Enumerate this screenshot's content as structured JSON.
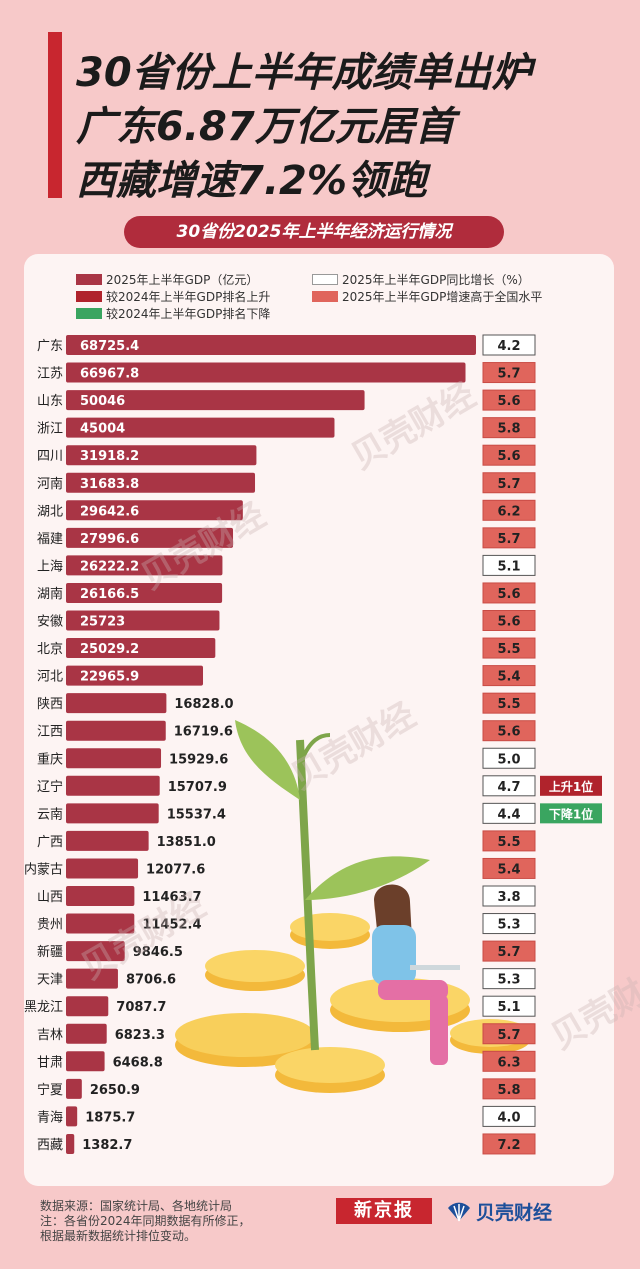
{
  "headline": [
    "30省份上半年成绩单出炉",
    "广东6.87万亿元居首",
    "西藏增速7.2%领跑"
  ],
  "chart_data": {
    "type": "bar",
    "title": "30省份2025年上半年经济运行情况",
    "legend": [
      {
        "label": "2025年上半年GDP（亿元）",
        "color": "#a93545"
      },
      {
        "label": "2025年上半年GDP同比增长（%）",
        "color": "#ffffff"
      },
      {
        "label": "较2024年上半年GDP排名上升",
        "color": "#b0232c"
      },
      {
        "label": "2025年上半年GDP增速高于全国水平",
        "color": "#e0655c"
      },
      {
        "label": "较2024年上半年GDP排名下降",
        "color": "#3aa560"
      }
    ],
    "categories": [
      "广东",
      "江苏",
      "山东",
      "浙江",
      "四川",
      "河南",
      "湖北",
      "福建",
      "上海",
      "湖南",
      "安徽",
      "北京",
      "河北",
      "陕西",
      "江西",
      "重庆",
      "辽宁",
      "云南",
      "广西",
      "内蒙古",
      "山西",
      "贵州",
      "新疆",
      "天津",
      "黑龙江",
      "吉林",
      "甘肃",
      "宁夏",
      "青海",
      "西藏"
    ],
    "series": [
      {
        "name": "2025年上半年GDP（亿元）",
        "values": [
          "68725.4",
          "66967.8",
          "50046",
          "45004",
          "31918.2",
          "31683.8",
          "29642.6",
          "27996.6",
          "26222.2",
          "26166.5",
          "25723",
          "25029.2",
          "22965.9",
          "16828.0",
          "16719.6",
          "15929.6",
          "15707.9",
          "15537.4",
          "13851.0",
          "12077.6",
          "11463.7",
          "11452.4",
          "9846.5",
          "8706.6",
          "7087.7",
          "6823.3",
          "6468.8",
          "2650.9",
          "1875.7",
          "1382.7"
        ]
      },
      {
        "name": "2025年上半年GDP同比增长（%）",
        "values": [
          "4.2",
          "5.7",
          "5.6",
          "5.8",
          "5.6",
          "5.7",
          "6.2",
          "5.7",
          "5.1",
          "5.6",
          "5.6",
          "5.5",
          "5.4",
          "5.5",
          "5.6",
          "5.0",
          "4.7",
          "4.4",
          "5.5",
          "5.4",
          "3.8",
          "5.3",
          "5.7",
          "5.3",
          "5.1",
          "5.7",
          "6.3",
          "5.8",
          "4.0",
          "7.2"
        ]
      }
    ],
    "above_national": [
      false,
      true,
      true,
      true,
      true,
      true,
      true,
      true,
      false,
      true,
      true,
      true,
      true,
      true,
      true,
      false,
      false,
      false,
      true,
      true,
      false,
      false,
      true,
      false,
      false,
      true,
      true,
      true,
      false,
      true
    ],
    "rank_change": [
      {
        "index": 16,
        "text": "上升1位",
        "color": "#b0232c"
      },
      {
        "index": 17,
        "text": "下降1位",
        "color": "#3aa560"
      }
    ]
  },
  "footer": {
    "lines": [
      "数据来源：国家统计局、各地统计局",
      "注：各省份2024年同期数据有所修正，",
      "根据最新数据统计排位变动。"
    ]
  },
  "logos": {
    "xjb": "新京报",
    "bk": "贝壳财经"
  }
}
